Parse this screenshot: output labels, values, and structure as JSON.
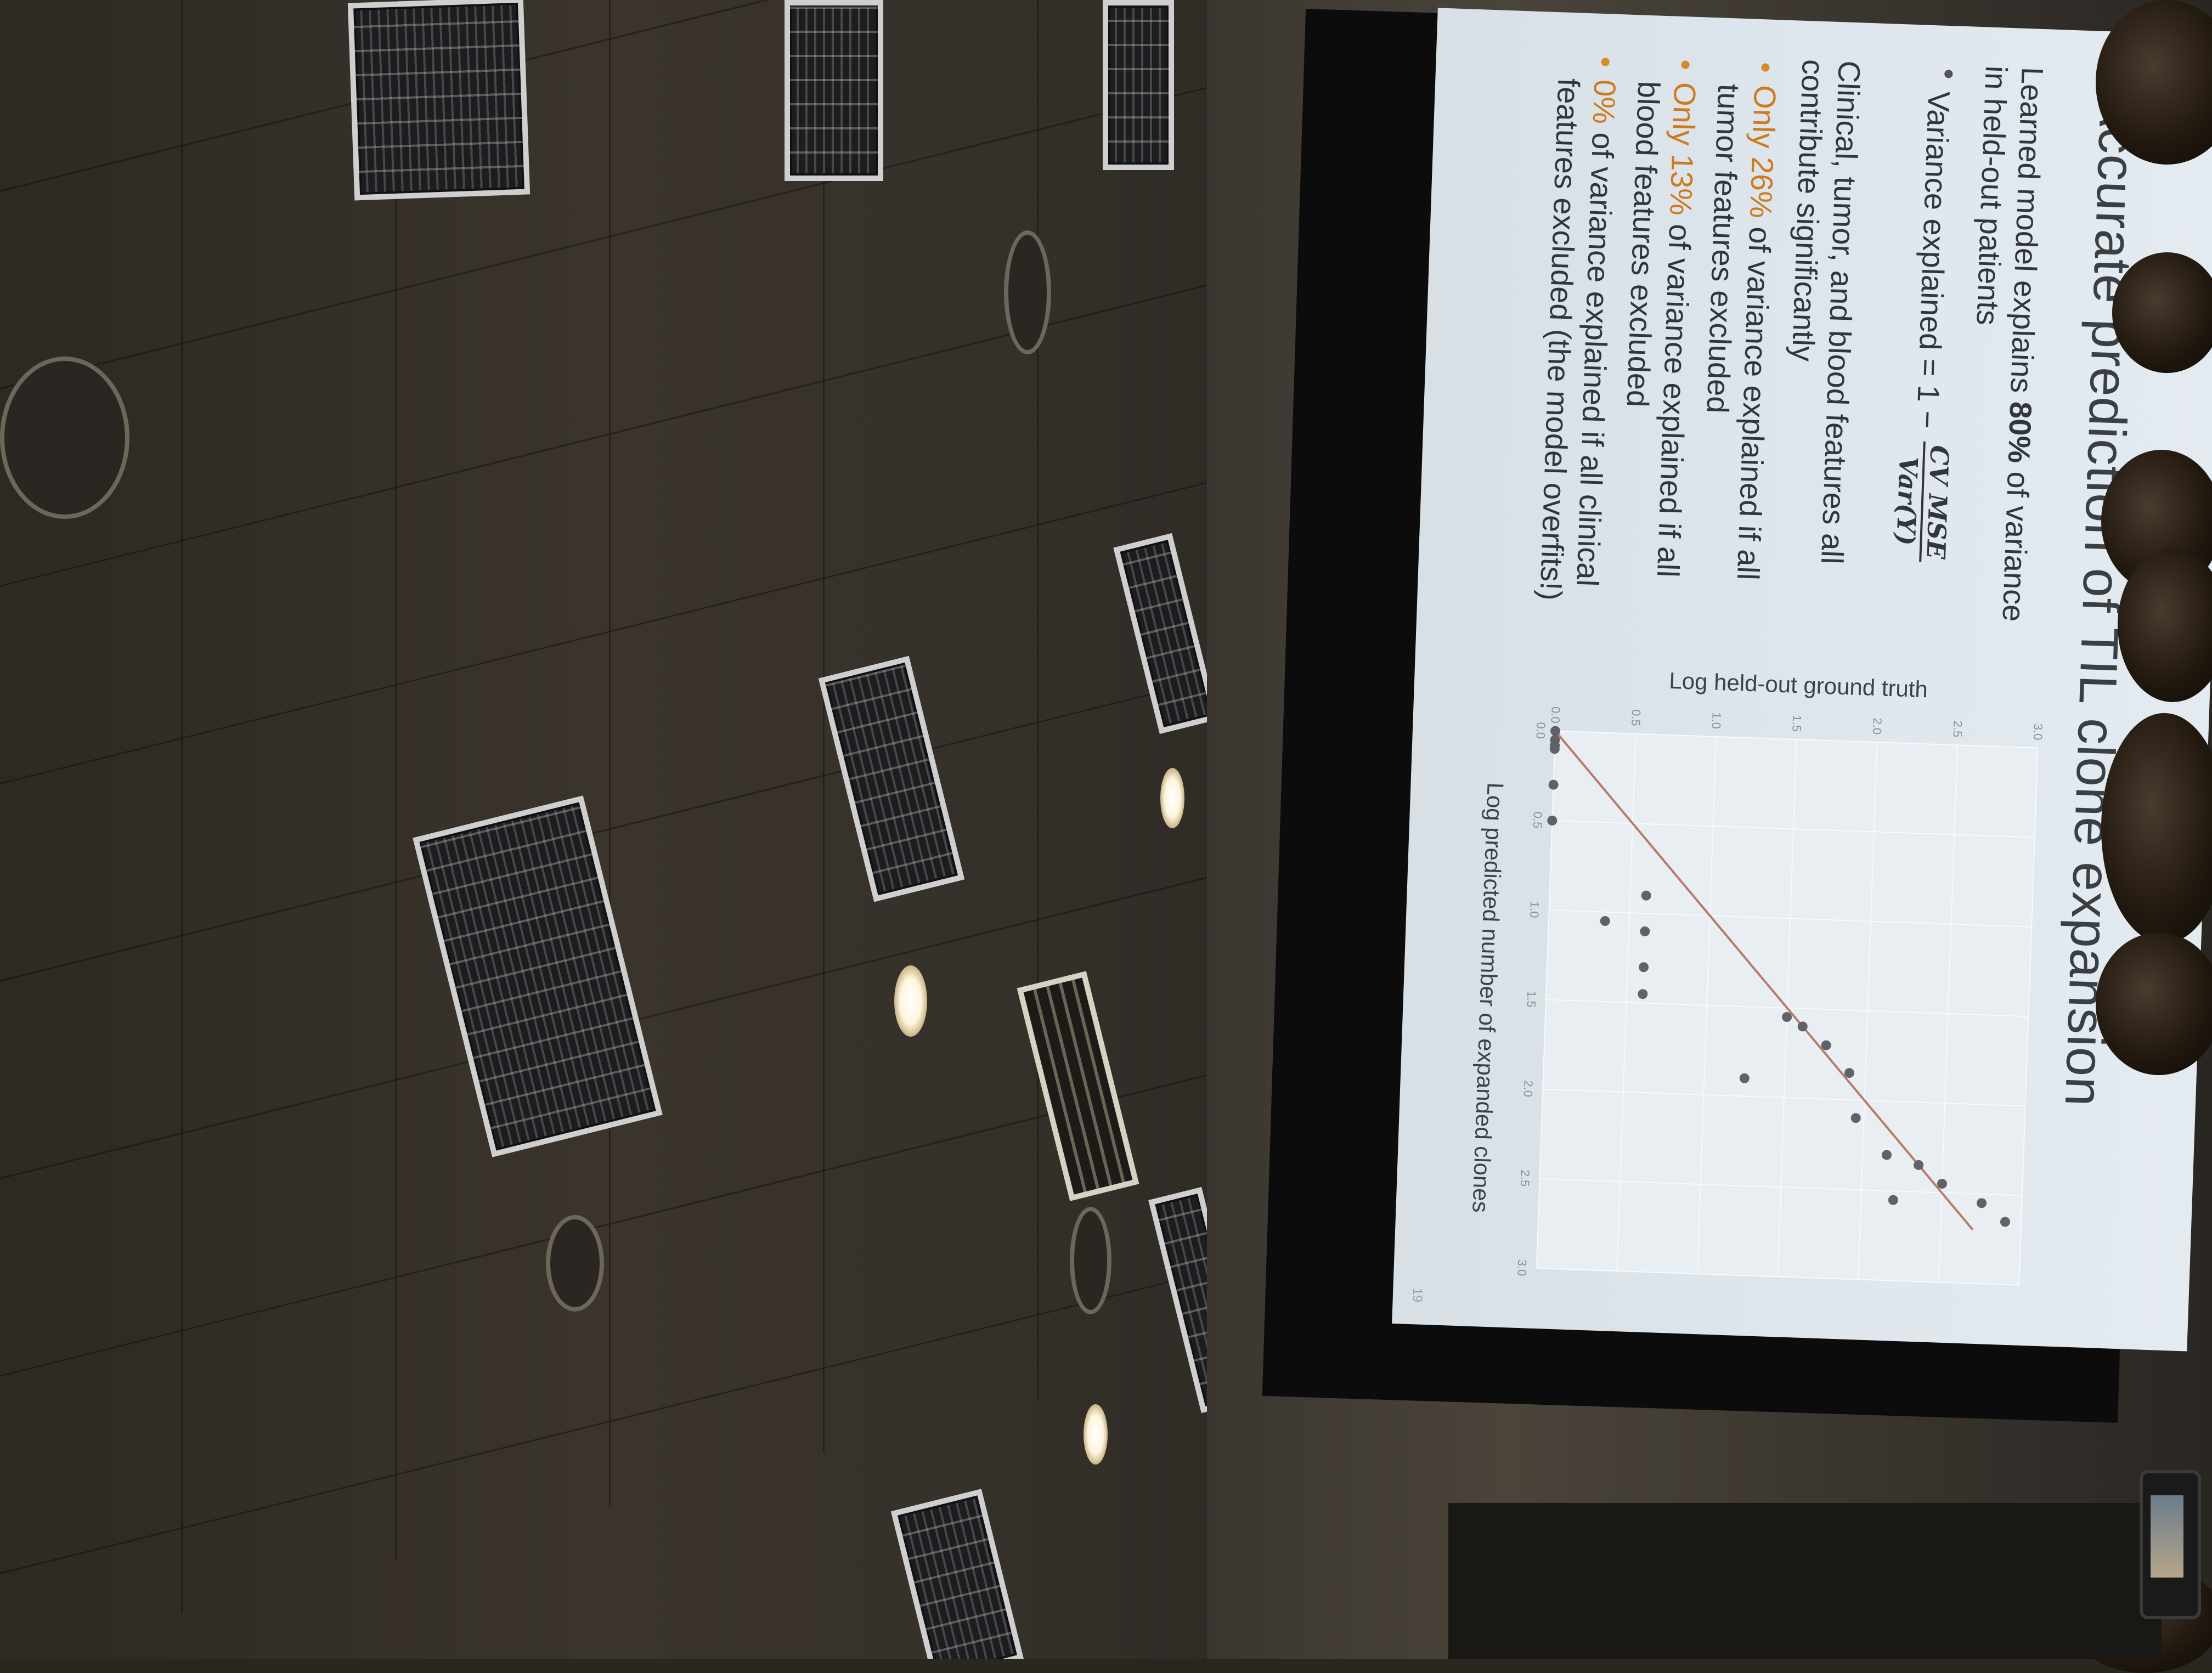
{
  "slide": {
    "title": "Accurate prediction of TIL clone expansion",
    "intro_prefix": "Learned model explains ",
    "intro_highlight": "80%",
    "intro_suffix": " of variance in held-out patients",
    "variance_label": "Variance explained = 1 −",
    "formula_numerator": "CV MSE",
    "formula_denominator": "Var(Y)",
    "contrib_text": "Clinical, tumor, and blood features all contribute significantly",
    "bullet1_highlight": "Only 26%",
    "bullet1_rest": " of variance explained if all tumor features excluded",
    "bullet2_highlight": "Only 13%",
    "bullet2_rest": " of variance explained if all blood features excluded",
    "bullet3_highlight": "0%",
    "bullet3_rest": " of variance explained if all clinical features excluded (the model overfits!)",
    "page_number": "19"
  },
  "chart_data": {
    "type": "scatter",
    "xlabel": "Log predicted number of expanded clones",
    "ylabel": "Log held-out ground truth",
    "xlim": [
      0.0,
      3.0
    ],
    "ylim": [
      0.0,
      3.0
    ],
    "x_ticks": [
      "0.0",
      "0.5",
      "1.0",
      "1.5",
      "2.0",
      "2.5",
      "3.0"
    ],
    "y_ticks": [
      "0.0",
      "0.5",
      "1.0",
      "1.5",
      "2.0",
      "2.5",
      "3.0"
    ],
    "points": [
      {
        "x": 0.0,
        "y": 0.0
      },
      {
        "x": 0.05,
        "y": 0.0
      },
      {
        "x": 0.08,
        "y": 0.0
      },
      {
        "x": 0.1,
        "y": 0.0
      },
      {
        "x": 0.3,
        "y": 0.0
      },
      {
        "x": 0.5,
        "y": 0.0
      },
      {
        "x": 0.9,
        "y": 0.6
      },
      {
        "x": 1.05,
        "y": 0.35
      },
      {
        "x": 1.1,
        "y": 0.6
      },
      {
        "x": 1.3,
        "y": 0.6
      },
      {
        "x": 1.45,
        "y": 0.6
      },
      {
        "x": 1.55,
        "y": 1.5
      },
      {
        "x": 1.6,
        "y": 1.6
      },
      {
        "x": 1.7,
        "y": 1.75
      },
      {
        "x": 1.85,
        "y": 1.9
      },
      {
        "x": 1.9,
        "y": 1.25
      },
      {
        "x": 2.1,
        "y": 1.95
      },
      {
        "x": 2.3,
        "y": 2.15
      },
      {
        "x": 2.35,
        "y": 2.35
      },
      {
        "x": 2.45,
        "y": 2.5
      },
      {
        "x": 2.55,
        "y": 2.2
      },
      {
        "x": 2.55,
        "y": 2.75
      },
      {
        "x": 2.65,
        "y": 2.9
      }
    ],
    "fit_line": {
      "x": [
        0.0,
        2.7
      ],
      "y": [
        0.0,
        2.7
      ]
    },
    "grid": true,
    "colors": {
      "points": "#5f6367",
      "fit_line": "#b87a6a"
    }
  }
}
